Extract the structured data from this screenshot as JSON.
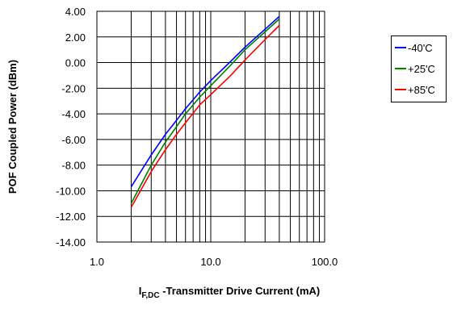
{
  "chart_data": {
    "type": "line",
    "title": "",
    "xlabel": {
      "main": "I",
      "sub": "F,DC",
      "rest": " -Transmitter Drive Current (mA)"
    },
    "ylabel": "POF Coupled Power (dBm)",
    "xscale": "log",
    "xlim": [
      1.0,
      100.0
    ],
    "ylim": [
      -14.0,
      4.0
    ],
    "x_ticks": [
      "1.0",
      "10.0",
      "100.0"
    ],
    "y_ticks": [
      "4.00",
      "2.00",
      "0.00",
      "-2.00",
      "-4.00",
      "-6.00",
      "-8.00",
      "-10.00",
      "-12.00",
      "-14.00"
    ],
    "grid": true,
    "legend_position": "right",
    "series": [
      {
        "name": "-40'C",
        "color": "#0000ff",
        "x": [
          2,
          3,
          4,
          5,
          6,
          8,
          10,
          15,
          20,
          30,
          40
        ],
        "y": [
          -9.7,
          -7.2,
          -5.6,
          -4.5,
          -3.6,
          -2.3,
          -1.4,
          0.1,
          1.2,
          2.6,
          3.6
        ]
      },
      {
        "name": "+25'C",
        "color": "#008000",
        "x": [
          2,
          3,
          4,
          5,
          6,
          8,
          10,
          15,
          20,
          30,
          40
        ],
        "y": [
          -11.0,
          -8.0,
          -6.2,
          -5.0,
          -4.0,
          -2.7,
          -1.8,
          -0.2,
          1.0,
          2.4,
          3.4
        ]
      },
      {
        "name": "+85'C",
        "color": "#ff0000",
        "x": [
          2,
          3,
          4,
          5,
          6,
          8,
          10,
          15,
          20,
          30,
          40
        ],
        "y": [
          -11.3,
          -8.5,
          -6.8,
          -5.6,
          -4.7,
          -3.3,
          -2.5,
          -1.0,
          0.2,
          1.8,
          2.9
        ]
      }
    ]
  }
}
